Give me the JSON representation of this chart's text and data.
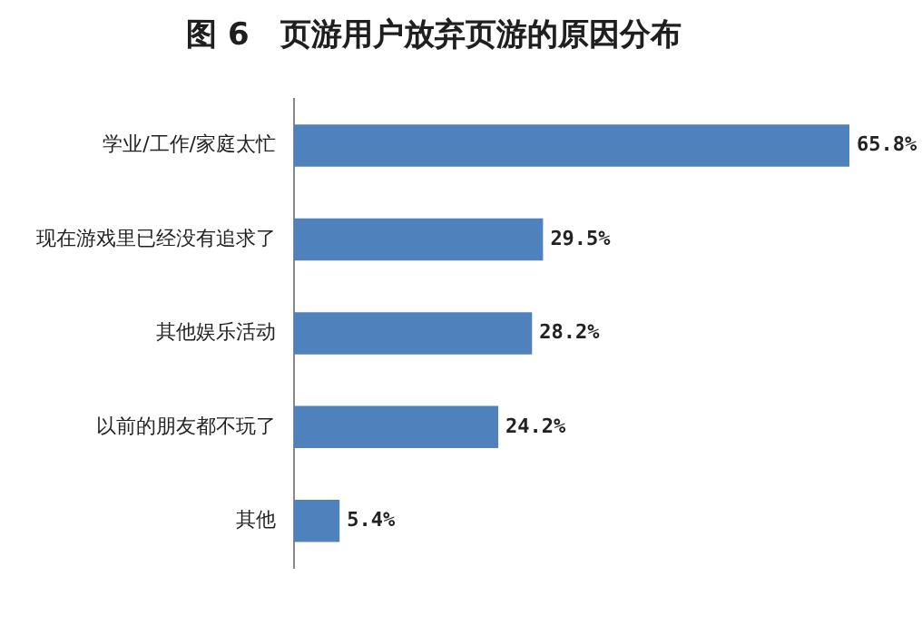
{
  "chart_data": {
    "type": "bar",
    "orientation": "horizontal",
    "title": "图 6　页游用户放弃页游的原因分布",
    "categories": [
      "学业/工作/家庭太忙",
      "现在游戏里已经没有追求了",
      "其他娱乐活动",
      "以前的朋友都不玩了",
      "其他"
    ],
    "values": [
      65.8,
      29.5,
      28.2,
      24.2,
      5.4
    ],
    "value_labels": [
      "65.8%",
      "29.5%",
      "28.2%",
      "24.2%",
      "5.4%"
    ],
    "color": "#4f81bd"
  }
}
